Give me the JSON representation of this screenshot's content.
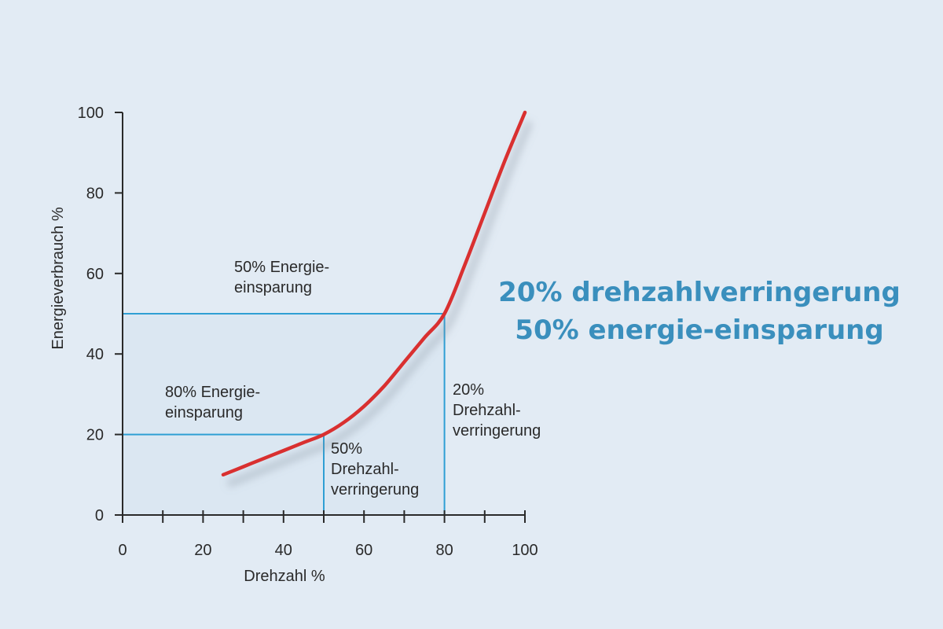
{
  "chart_data": {
    "type": "line",
    "xlabel": "Drehzahl %",
    "ylabel": "Energieverbrauch %",
    "xlim": [
      0,
      100
    ],
    "ylim": [
      0,
      100
    ],
    "x_ticks": [
      0,
      20,
      40,
      60,
      80,
      100
    ],
    "y_ticks": [
      0,
      20,
      40,
      60,
      80,
      100
    ],
    "x_minor_step": 10,
    "series": [
      {
        "name": "Energieverbrauch",
        "color": "#d93030",
        "x": [
          25,
          30,
          35,
          40,
          45,
          50,
          55,
          60,
          65,
          70,
          75,
          80,
          85,
          90,
          95,
          100
        ],
        "y": [
          10,
          12,
          14,
          16,
          18,
          20,
          23,
          27,
          32,
          38,
          44,
          50,
          62,
          75,
          88,
          100
        ]
      }
    ],
    "reference_lines": [
      {
        "name": "ref-20",
        "x": 50,
        "y": 20,
        "color": "#2f9fd4"
      },
      {
        "name": "ref-50",
        "x": 80,
        "y": 50,
        "color": "#2f9fd4"
      }
    ],
    "annotations": [
      {
        "name": "annotation-80-energie",
        "lines": [
          "80% Energie-",
          "einsparung"
        ]
      },
      {
        "name": "annotation-50-energie",
        "lines": [
          "50% Energie-",
          "einsparung"
        ]
      },
      {
        "name": "annotation-50-drehzahl",
        "lines": [
          "50%",
          "Drehzahl-",
          "verringerung"
        ]
      },
      {
        "name": "annotation-20-drehzahl",
        "lines": [
          "20%",
          "Drehzahl-",
          "verringerung"
        ]
      }
    ]
  },
  "headline": {
    "line1": "20% drehzahlverringerung",
    "line2": "50% energie-einsparung"
  }
}
